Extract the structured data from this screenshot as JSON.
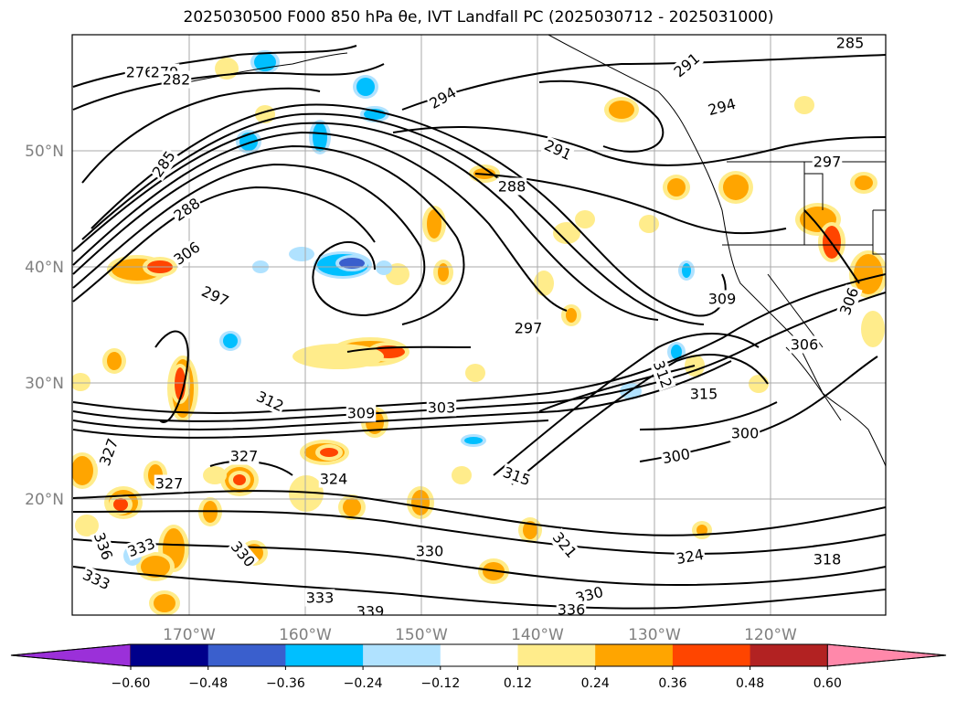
{
  "title": "2025030500 F000 850 hPa θe, IVT Landfall PC (2025030712 - 2025031000)",
  "lon_labels": [
    "170°W",
    "160°W",
    "150°W",
    "140°W",
    "130°W",
    "120°W"
  ],
  "lat_labels": [
    "50°N",
    "40°N",
    "30°N",
    "20°N"
  ],
  "contour_labels": [
    "276",
    "279",
    "282",
    "285",
    "285",
    "288",
    "288",
    "291",
    "291",
    "294",
    "294",
    "297",
    "297",
    "297",
    "300",
    "300",
    "303",
    "306",
    "306",
    "306",
    "309",
    "309",
    "312",
    "312",
    "315",
    "315",
    "318",
    "321",
    "324",
    "324",
    "327",
    "327",
    "327",
    "330",
    "330",
    "330",
    "333",
    "333",
    "333",
    "336",
    "336",
    "339"
  ],
  "colorbar": {
    "ticks": [
      "−0.60",
      "−0.48",
      "−0.36",
      "−0.24",
      "−0.12",
      "0.12",
      "0.24",
      "0.36",
      "0.48",
      "0.60"
    ],
    "colors": [
      "#9b30d9",
      "#00008b",
      "#3a5fcd",
      "#00bfff",
      "#b0e2ff",
      "#ffffff",
      "#ffec8b",
      "#ffa500",
      "#ff4500",
      "#b22222",
      "#ff88aa"
    ]
  },
  "colors": {
    "grid": "#aaaaaa",
    "contour": "#000000",
    "coast": "#000000"
  }
}
